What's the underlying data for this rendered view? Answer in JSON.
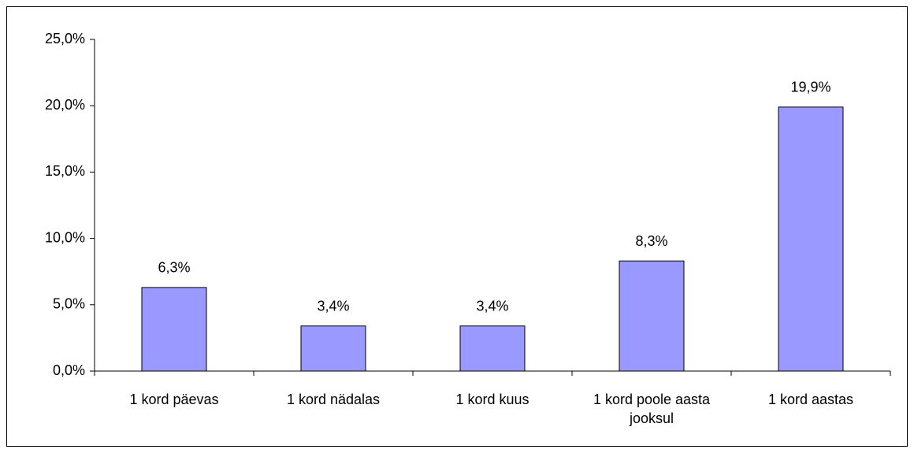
{
  "chart_data": {
    "type": "bar",
    "categories": [
      "1 kord päevas",
      "1 kord nädalas",
      "1 kord kuus",
      "1 kord poole aasta jooksul",
      "1 kord aastas"
    ],
    "values": [
      6.3,
      3.4,
      3.4,
      8.3,
      19.9
    ],
    "value_labels": [
      "6,3%",
      "3,4%",
      "3,4%",
      "8,3%",
      "19,9%"
    ],
    "color": "#9999ff",
    "ylim": [
      0,
      25
    ],
    "yticks": [
      {
        "value": 0,
        "label": "0,0%"
      },
      {
        "value": 5,
        "label": "5,0%"
      },
      {
        "value": 10,
        "label": "10,0%"
      },
      {
        "value": 15,
        "label": "15,0%"
      },
      {
        "value": 20,
        "label": "20,0%"
      },
      {
        "value": 25,
        "label": "25,0%"
      }
    ],
    "grid": false
  }
}
